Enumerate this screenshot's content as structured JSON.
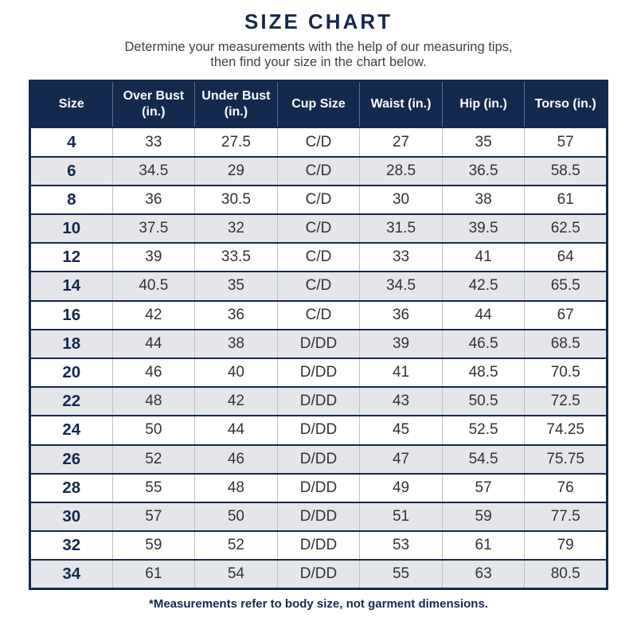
{
  "page": {
    "title": "SIZE CHART",
    "subtitle_line1": "Determine your measurements with the help of our measuring tips,",
    "subtitle_line2": "then find your size in the chart below.",
    "footnote": "*Measurements refer to body size, not garment dimensions."
  },
  "colors": {
    "navy": "#14294e",
    "alt_row_gray": "#e5e6e9",
    "body_text": "#313236",
    "cell_divider": "#bcbfc5"
  },
  "chart_data": {
    "type": "table",
    "title": "SIZE CHART",
    "columns": [
      "Size",
      "Over Bust (in.)",
      "Under Bust (in.)",
      "Cup Size",
      "Waist (in.)",
      "Hip (in.)",
      "Torso (in.)"
    ],
    "rows": [
      [
        "4",
        "33",
        "27.5",
        "C/D",
        "27",
        "35",
        "57"
      ],
      [
        "6",
        "34.5",
        "29",
        "C/D",
        "28.5",
        "36.5",
        "58.5"
      ],
      [
        "8",
        "36",
        "30.5",
        "C/D",
        "30",
        "38",
        "61"
      ],
      [
        "10",
        "37.5",
        "32",
        "C/D",
        "31.5",
        "39.5",
        "62.5"
      ],
      [
        "12",
        "39",
        "33.5",
        "C/D",
        "33",
        "41",
        "64"
      ],
      [
        "14",
        "40.5",
        "35",
        "C/D",
        "34.5",
        "42.5",
        "65.5"
      ],
      [
        "16",
        "42",
        "36",
        "C/D",
        "36",
        "44",
        "67"
      ],
      [
        "18",
        "44",
        "38",
        "D/DD",
        "39",
        "46.5",
        "68.5"
      ],
      [
        "20",
        "46",
        "40",
        "D/DD",
        "41",
        "48.5",
        "70.5"
      ],
      [
        "22",
        "48",
        "42",
        "D/DD",
        "43",
        "50.5",
        "72.5"
      ],
      [
        "24",
        "50",
        "44",
        "D/DD",
        "45",
        "52.5",
        "74.25"
      ],
      [
        "26",
        "52",
        "46",
        "D/DD",
        "47",
        "54.5",
        "75.75"
      ],
      [
        "28",
        "55",
        "48",
        "D/DD",
        "49",
        "57",
        "76"
      ],
      [
        "30",
        "57",
        "50",
        "D/DD",
        "51",
        "59",
        "77.5"
      ],
      [
        "32",
        "59",
        "52",
        "D/DD",
        "53",
        "61",
        "79"
      ],
      [
        "34",
        "61",
        "54",
        "D/DD",
        "55",
        "63",
        "80.5"
      ]
    ]
  }
}
